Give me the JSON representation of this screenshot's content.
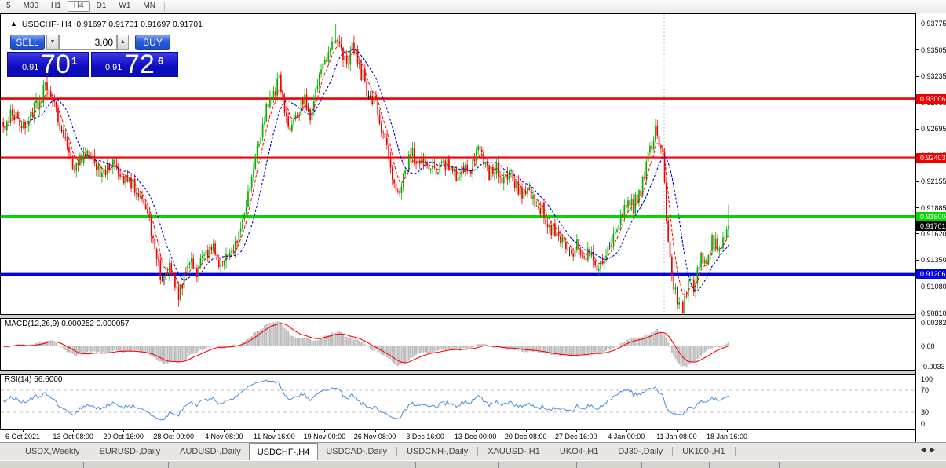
{
  "toolbar": {
    "timeframes": [
      "5",
      "M30",
      "H1",
      "H4",
      "D1",
      "W1",
      "MN"
    ],
    "active": "H4"
  },
  "chart_header": {
    "collapse_icon": "▲",
    "title": "USDCHF-,H4",
    "ohlc": "0.91697 0.91701 0.91697 0.91701"
  },
  "trade_panel": {
    "sell_label": "SELL",
    "buy_label": "BUY",
    "volume": "3.00",
    "sell_price": {
      "small": "0.91",
      "big": "70",
      "sup": "1"
    },
    "buy_price": {
      "small": "0.91",
      "big": "72",
      "sup": "6"
    }
  },
  "chart_data": {
    "type": "candlestick",
    "symbol": "USDCHF",
    "timeframe": "H4",
    "bar_count": 398,
    "current_price": 0.91701,
    "y_ticks": [
      0.93775,
      0.93505,
      0.93235,
      0.92965,
      0.92695,
      0.92425,
      0.92155,
      0.91885,
      0.9162,
      0.9135,
      0.9108,
      0.9081
    ],
    "levels": [
      {
        "price": 0.93006,
        "color": "#f00000",
        "width": 2.6,
        "text_color": "#fff"
      },
      {
        "price": 0.92403,
        "color": "#f00000",
        "width": 2.2,
        "text_color": "#fff"
      },
      {
        "price": 0.918,
        "color": "#00d800",
        "width": 3.0,
        "text_color": "#fff"
      },
      {
        "price": 0.91206,
        "color": "#0000e0",
        "width": 3.4,
        "text_color": "#fff"
      }
    ],
    "current_tag_color": "#000000",
    "x_labels": [
      "6 Oct 2021",
      "13 Oct 08:00",
      "20 Oct 16:00",
      "28 Oct 00:00",
      "4 Nov 08:00",
      "11 Nov 16:00",
      "19 Nov 00:00",
      "26 Nov 08:00",
      "3 Dec 16:00",
      "13 Dec 00:00",
      "20 Dec 08:00",
      "27 Dec 16:00",
      "4 Jan 00:00",
      "11 Jan 08:00",
      "18 Jan 16:00"
    ],
    "price_path_anchors": [
      [
        0,
        0.9268
      ],
      [
        4,
        0.9284
      ],
      [
        8,
        0.9277
      ],
      [
        12,
        0.927
      ],
      [
        16,
        0.9288
      ],
      [
        20,
        0.9296
      ],
      [
        24,
        0.9316
      ],
      [
        27,
        0.93
      ],
      [
        31,
        0.927
      ],
      [
        35,
        0.9248
      ],
      [
        39,
        0.9228
      ],
      [
        44,
        0.9243
      ],
      [
        48,
        0.9246
      ],
      [
        54,
        0.9222
      ],
      [
        58,
        0.923
      ],
      [
        61,
        0.9238
      ],
      [
        64,
        0.9222
      ],
      [
        67,
        0.9218
      ],
      [
        71,
        0.9213
      ],
      [
        74,
        0.9206
      ],
      [
        78,
        0.9192
      ],
      [
        82,
        0.9155
      ],
      [
        87,
        0.9112
      ],
      [
        91,
        0.913
      ],
      [
        94,
        0.911
      ],
      [
        96,
        0.9098
      ],
      [
        99,
        0.9118
      ],
      [
        102,
        0.9134
      ],
      [
        106,
        0.9124
      ],
      [
        111,
        0.914
      ],
      [
        115,
        0.915
      ],
      [
        119,
        0.913
      ],
      [
        123,
        0.9136
      ],
      [
        127,
        0.915
      ],
      [
        132,
        0.9182
      ],
      [
        136,
        0.9224
      ],
      [
        140,
        0.9258
      ],
      [
        145,
        0.9296
      ],
      [
        149,
        0.931
      ],
      [
        151,
        0.9324
      ],
      [
        154,
        0.9289
      ],
      [
        157,
        0.9266
      ],
      [
        162,
        0.929
      ],
      [
        165,
        0.93
      ],
      [
        168,
        0.9282
      ],
      [
        171,
        0.9308
      ],
      [
        175,
        0.9336
      ],
      [
        179,
        0.9352
      ],
      [
        182,
        0.9366
      ],
      [
        185,
        0.9348
      ],
      [
        188,
        0.9336
      ],
      [
        191,
        0.9352
      ],
      [
        194,
        0.934
      ],
      [
        197,
        0.932
      ],
      [
        200,
        0.9305
      ],
      [
        204,
        0.9295
      ],
      [
        207,
        0.927
      ],
      [
        211,
        0.924
      ],
      [
        213,
        0.9222
      ],
      [
        217,
        0.9205
      ],
      [
        220,
        0.923
      ],
      [
        224,
        0.9245
      ],
      [
        227,
        0.9232
      ],
      [
        231,
        0.9241
      ],
      [
        235,
        0.9227
      ],
      [
        239,
        0.9231
      ],
      [
        243,
        0.9236
      ],
      [
        248,
        0.9221
      ],
      [
        252,
        0.9231
      ],
      [
        256,
        0.9226
      ],
      [
        260,
        0.9252
      ],
      [
        263,
        0.9236
      ],
      [
        266,
        0.9224
      ],
      [
        270,
        0.9231
      ],
      [
        273,
        0.9216
      ],
      [
        277,
        0.9226
      ],
      [
        280,
        0.9214
      ],
      [
        284,
        0.9201
      ],
      [
        287,
        0.9211
      ],
      [
        290,
        0.9196
      ],
      [
        294,
        0.9186
      ],
      [
        297,
        0.9176
      ],
      [
        301,
        0.9166
      ],
      [
        304,
        0.916
      ],
      [
        308,
        0.915
      ],
      [
        311,
        0.9141
      ],
      [
        314,
        0.9147
      ],
      [
        318,
        0.9135
      ],
      [
        321,
        0.9145
      ],
      [
        325,
        0.9131
      ],
      [
        328,
        0.9137
      ],
      [
        332,
        0.9151
      ],
      [
        335,
        0.9165
      ],
      [
        338,
        0.918
      ],
      [
        342,
        0.9195
      ],
      [
        345,
        0.919
      ],
      [
        349,
        0.9208
      ],
      [
        352,
        0.9234
      ],
      [
        355,
        0.9254
      ],
      [
        357,
        0.9266
      ],
      [
        359,
        0.9254
      ],
      [
        361,
        0.924
      ],
      [
        363,
        0.9178
      ],
      [
        365,
        0.914
      ],
      [
        367,
        0.911
      ],
      [
        369,
        0.9094
      ],
      [
        372,
        0.9086
      ],
      [
        374,
        0.9105
      ],
      [
        376,
        0.9119
      ],
      [
        378,
        0.9107
      ],
      [
        380,
        0.9124
      ],
      [
        382,
        0.9137
      ],
      [
        385,
        0.9129
      ],
      [
        387,
        0.9147
      ],
      [
        390,
        0.9154
      ],
      [
        392,
        0.9142
      ],
      [
        394,
        0.9157
      ],
      [
        396,
        0.9164
      ],
      [
        397,
        0.917
      ]
    ],
    "spikes": [
      {
        "i": 24,
        "h": 0.933
      },
      {
        "i": 151,
        "h": 0.9341
      },
      {
        "i": 182,
        "h": 0.93775
      },
      {
        "i": 96,
        "l": 0.9089
      },
      {
        "i": 372,
        "l": 0.9081
      },
      {
        "i": 397,
        "h": 0.9192
      }
    ],
    "vertical_line_x": 846,
    "macd": {
      "label": "MACD(12,26,9) 0.000252 0.000057",
      "fast": 12,
      "slow": 26,
      "signal": 9,
      "value": 0.000252,
      "signal_value": 5.7e-05,
      "y_tick_labels": [
        "0.00382",
        "0.00",
        "-0.0033"
      ]
    },
    "rsi": {
      "label": "RSI(14) 56.6000",
      "period": 14,
      "value": 56.6,
      "y_tick_labels": [
        "100",
        "70",
        "30",
        "0"
      ],
      "guides": [
        70,
        30
      ]
    },
    "colors": {
      "up": "#00b000",
      "down": "#f80000",
      "doji": "#000000",
      "ma_fast": "#ff0000",
      "ma_slow": "#0000c8",
      "macd_hist": "#bbbbbb",
      "macd_signal": "#ff0000",
      "rsi_line": "#4a8fd8",
      "guide_dash": "#c0c0c0"
    }
  },
  "tabs": {
    "items": [
      "USDX,Weekly",
      "EURUSD-,Daily",
      "AUDUSD-,Daily",
      "USDCHF-,H4",
      "USDCAD-,Daily",
      "USDCNH-,Daily",
      "XAUUSD-,H1",
      "UKOil-,H1",
      "DJ30-,Daily",
      "UK100-,H1"
    ],
    "active": "USDCHF-,H4"
  },
  "nav": {
    "left": "◀",
    "right": "▶"
  }
}
